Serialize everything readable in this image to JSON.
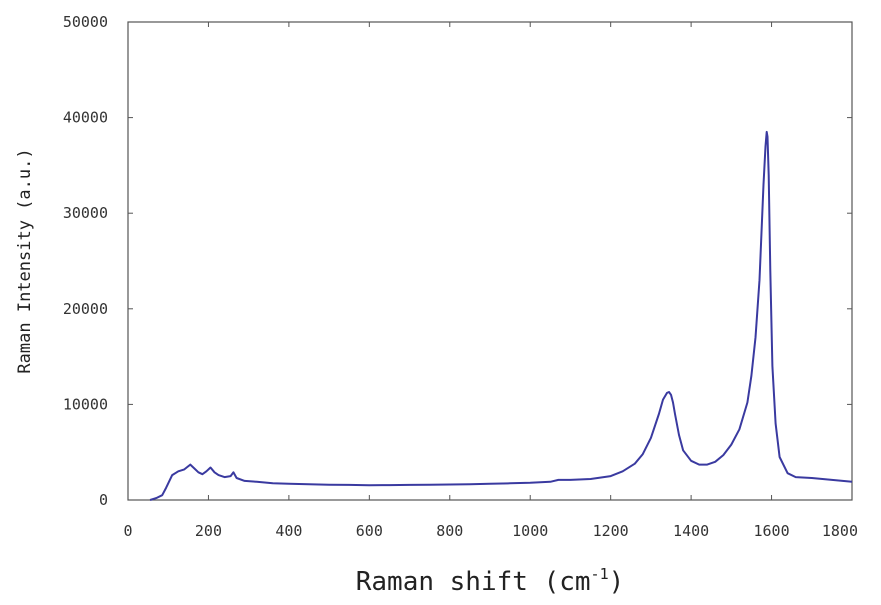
{
  "chart_data": {
    "type": "line",
    "title": "",
    "xlabel": "Raman shift (cm",
    "xlabel_sup": "-1",
    "xlabel_close": ")",
    "ylabel": "Raman Intensity (a.u.)",
    "xlim": [
      0,
      1800
    ],
    "ylim": [
      0,
      50000
    ],
    "x_ticks": [
      0,
      200,
      400,
      600,
      800,
      1000,
      1200,
      1400,
      1600,
      1800
    ],
    "x_tick_labels": [
      "0",
      "200",
      "400",
      "600",
      "800",
      "1000",
      "1200",
      "1400",
      "1600",
      "1800"
    ],
    "y_ticks": [
      0,
      10000,
      20000,
      30000,
      40000,
      50000
    ],
    "y_tick_labels": [
      "0",
      "10000",
      "20000",
      "30000",
      "40000",
      "50000"
    ],
    "grid": false,
    "legend": "none",
    "line_color": "#3a3aa0",
    "series": [
      {
        "x": [
          55,
          70,
          85,
          95,
          110,
          125,
          140,
          155,
          165,
          175,
          185,
          195,
          205,
          215,
          225,
          240,
          255,
          262,
          270,
          290,
          320,
          360,
          400,
          450,
          500,
          550,
          600,
          650,
          700,
          750,
          800,
          850,
          900,
          950,
          1000,
          1050,
          1070,
          1100,
          1150,
          1200,
          1230,
          1260,
          1280,
          1300,
          1320,
          1330,
          1340,
          1345,
          1350,
          1355,
          1360,
          1370,
          1380,
          1400,
          1420,
          1440,
          1460,
          1480,
          1500,
          1520,
          1540,
          1550,
          1560,
          1570,
          1575,
          1580,
          1585,
          1588,
          1590,
          1593,
          1597,
          1602,
          1610,
          1620,
          1640,
          1660,
          1700,
          1750,
          1800
        ],
        "y": [
          0,
          200,
          500,
          1300,
          2600,
          3000,
          3200,
          3700,
          3300,
          2900,
          2700,
          3000,
          3400,
          2900,
          2600,
          2400,
          2500,
          2900,
          2300,
          2000,
          1900,
          1750,
          1700,
          1650,
          1600,
          1580,
          1550,
          1560,
          1580,
          1600,
          1620,
          1650,
          1700,
          1750,
          1800,
          1900,
          2100,
          2100,
          2200,
          2500,
          3000,
          3800,
          4800,
          6500,
          9000,
          10500,
          11200,
          11300,
          11000,
          10200,
          9000,
          6800,
          5200,
          4100,
          3700,
          3700,
          4000,
          4700,
          5800,
          7400,
          10200,
          13000,
          17000,
          23000,
          28000,
          33000,
          37000,
          38500,
          38000,
          34000,
          24000,
          14000,
          8000,
          4500,
          2800,
          2400,
          2300,
          2100,
          1900
        ]
      }
    ]
  }
}
